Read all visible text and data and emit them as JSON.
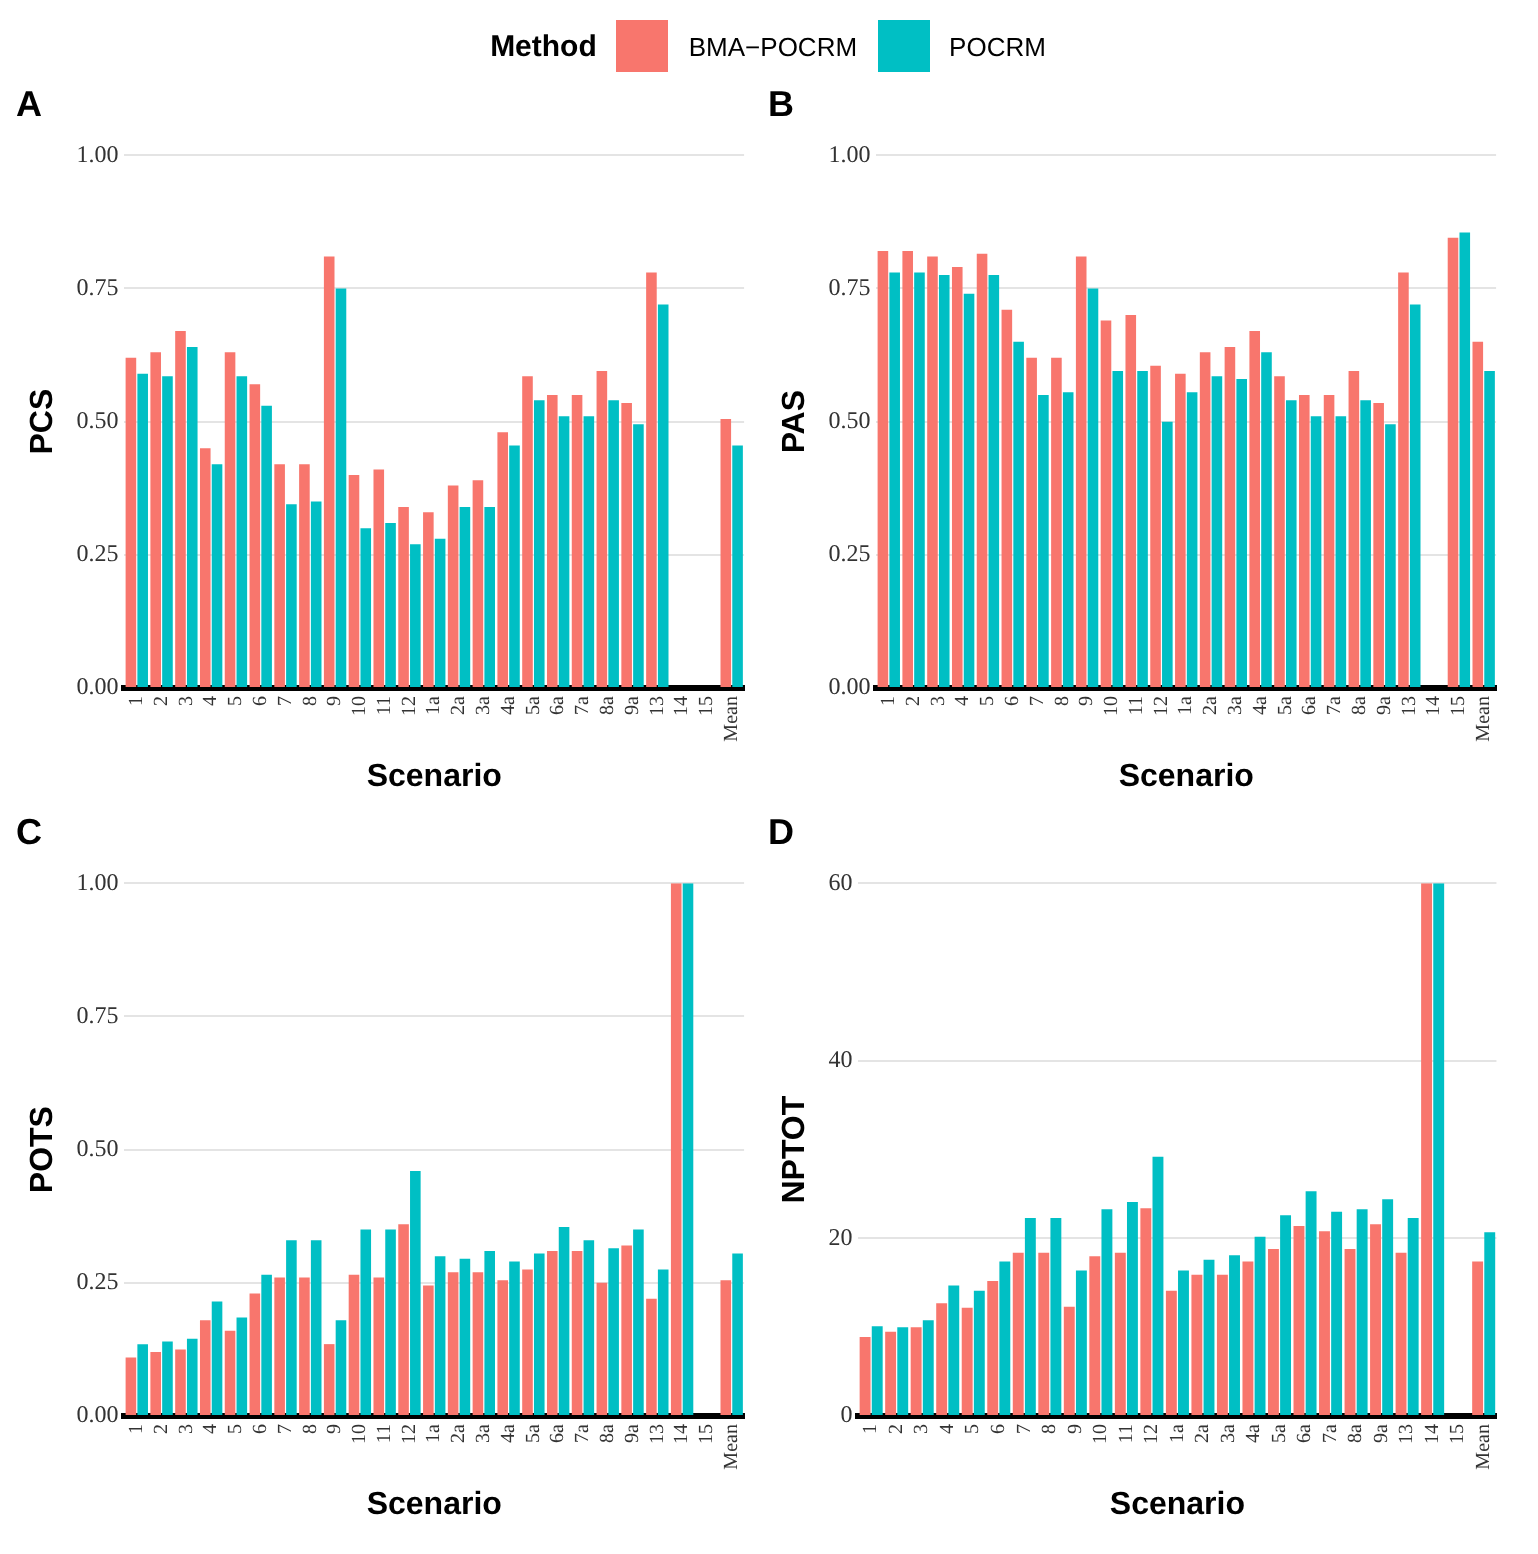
{
  "chart_data": [
    {
      "type": "bar",
      "title": "A",
      "xlabel": "Scenario",
      "ylabel": "PCS",
      "legend_title": "Method",
      "legend": "top",
      "grid": "y",
      "categories": [
        "1",
        "2",
        "3",
        "4",
        "5",
        "6",
        "7",
        "8",
        "9",
        "10",
        "11",
        "12",
        "1a",
        "2a",
        "3a",
        "4a",
        "5a",
        "6a",
        "7a",
        "8a",
        "9a",
        "13",
        "14",
        "15",
        "Mean"
      ],
      "ylim": [
        0,
        1
      ],
      "yticks": [
        {
          "value": 0,
          "label": "0.00"
        },
        {
          "value": 0.25,
          "label": "0.25"
        },
        {
          "value": 0.5,
          "label": "0.50"
        },
        {
          "value": 0.75,
          "label": "0.75"
        },
        {
          "value": 1,
          "label": "1.00"
        }
      ],
      "series": [
        {
          "name": "BMA−POCRM",
          "color": "#f8766d",
          "values": [
            0.62,
            0.63,
            0.67,
            0.45,
            0.63,
            0.57,
            0.42,
            0.42,
            0.81,
            0.4,
            0.41,
            0.34,
            0.33,
            0.38,
            0.39,
            0.48,
            0.585,
            0.55,
            0.55,
            0.595,
            0.535,
            0.78,
            null,
            null,
            0.505
          ]
        },
        {
          "name": "POCRM",
          "color": "#00bfc4",
          "values": [
            0.59,
            0.585,
            0.64,
            0.42,
            0.585,
            0.53,
            0.345,
            0.35,
            0.75,
            0.3,
            0.31,
            0.27,
            0.28,
            0.34,
            0.34,
            0.455,
            0.54,
            0.51,
            0.51,
            0.54,
            0.495,
            0.72,
            null,
            null,
            0.455
          ]
        }
      ]
    },
    {
      "type": "bar",
      "title": "B",
      "xlabel": "Scenario",
      "ylabel": "PAS",
      "grid": "y",
      "categories": [
        "1",
        "2",
        "3",
        "4",
        "5",
        "6",
        "7",
        "8",
        "9",
        "10",
        "11",
        "12",
        "1a",
        "2a",
        "3a",
        "4a",
        "5a",
        "6a",
        "7a",
        "8a",
        "9a",
        "13",
        "14",
        "15",
        "Mean"
      ],
      "ylim": [
        0,
        1
      ],
      "yticks": [
        {
          "value": 0,
          "label": "0.00"
        },
        {
          "value": 0.25,
          "label": "0.25"
        },
        {
          "value": 0.5,
          "label": "0.50"
        },
        {
          "value": 0.75,
          "label": "0.75"
        },
        {
          "value": 1,
          "label": "1.00"
        }
      ],
      "series": [
        {
          "color": "#f8766d",
          "values": [
            0.82,
            0.82,
            0.81,
            0.79,
            0.815,
            0.71,
            0.62,
            0.62,
            0.81,
            0.69,
            0.7,
            0.605,
            0.59,
            0.63,
            0.64,
            0.67,
            0.585,
            0.55,
            0.55,
            0.595,
            0.535,
            0.78,
            null,
            0.845,
            0.65
          ]
        },
        {
          "color": "#00bfc4",
          "values": [
            0.78,
            0.78,
            0.775,
            0.74,
            0.775,
            0.65,
            0.55,
            0.555,
            0.75,
            0.595,
            0.595,
            0.5,
            0.555,
            0.585,
            0.58,
            0.63,
            0.54,
            0.51,
            0.51,
            0.54,
            0.495,
            0.72,
            null,
            0.855,
            0.595
          ]
        }
      ]
    },
    {
      "type": "bar",
      "title": "C",
      "xlabel": "Scenario",
      "ylabel": "POTS",
      "grid": "y",
      "categories": [
        "1",
        "2",
        "3",
        "4",
        "5",
        "6",
        "7",
        "8",
        "9",
        "10",
        "11",
        "12",
        "1a",
        "2a",
        "3a",
        "4a",
        "5a",
        "6a",
        "7a",
        "8a",
        "9a",
        "13",
        "14",
        "15",
        "Mean"
      ],
      "ylim": [
        0,
        1
      ],
      "yticks": [
        {
          "value": 0,
          "label": "0.00"
        },
        {
          "value": 0.25,
          "label": "0.25"
        },
        {
          "value": 0.5,
          "label": "0.50"
        },
        {
          "value": 0.75,
          "label": "0.75"
        },
        {
          "value": 1,
          "label": "1.00"
        }
      ],
      "series": [
        {
          "color": "#f8766d",
          "values": [
            0.11,
            0.12,
            0.125,
            0.18,
            0.16,
            0.23,
            0.26,
            0.26,
            0.135,
            0.265,
            0.26,
            0.36,
            0.245,
            0.27,
            0.27,
            0.255,
            0.275,
            0.31,
            0.31,
            0.25,
            0.32,
            0.22,
            1.0,
            null,
            0.255
          ]
        },
        {
          "color": "#00bfc4",
          "values": [
            0.135,
            0.14,
            0.145,
            0.215,
            0.185,
            0.265,
            0.33,
            0.33,
            0.18,
            0.35,
            0.35,
            0.46,
            0.3,
            0.295,
            0.31,
            0.29,
            0.305,
            0.355,
            0.33,
            0.315,
            0.35,
            0.275,
            1.0,
            null,
            0.305
          ]
        }
      ]
    },
    {
      "type": "bar",
      "title": "D",
      "xlabel": "Scenario",
      "ylabel": "NPTOT",
      "grid": "y",
      "categories": [
        "1",
        "2",
        "3",
        "4",
        "5",
        "6",
        "7",
        "8",
        "9",
        "10",
        "11",
        "12",
        "1a",
        "2a",
        "3a",
        "4a",
        "5a",
        "6a",
        "7a",
        "8a",
        "9a",
        "13",
        "14",
        "15",
        "Mean"
      ],
      "ylim": [
        0,
        60
      ],
      "yticks": [
        0,
        20,
        40,
        60
      ],
      "series": [
        {
          "color": "#f8766d",
          "values": [
            8.9,
            9.5,
            10,
            12.7,
            12.2,
            15.2,
            18.4,
            18.4,
            12.3,
            18,
            18.4,
            23.4,
            14.1,
            15.9,
            15.9,
            17.4,
            18.8,
            21.4,
            20.8,
            18.8,
            21.6,
            18.4,
            60,
            null,
            17.4
          ]
        },
        {
          "color": "#00bfc4",
          "values": [
            10.1,
            10,
            10.8,
            14.7,
            14.1,
            17.4,
            22.3,
            22.3,
            16.4,
            23.3,
            24.1,
            29.2,
            16.4,
            17.6,
            18.1,
            20.2,
            22.6,
            25.3,
            23,
            23.3,
            24.4,
            22.3,
            60,
            null,
            20.7
          ]
        }
      ]
    }
  ]
}
